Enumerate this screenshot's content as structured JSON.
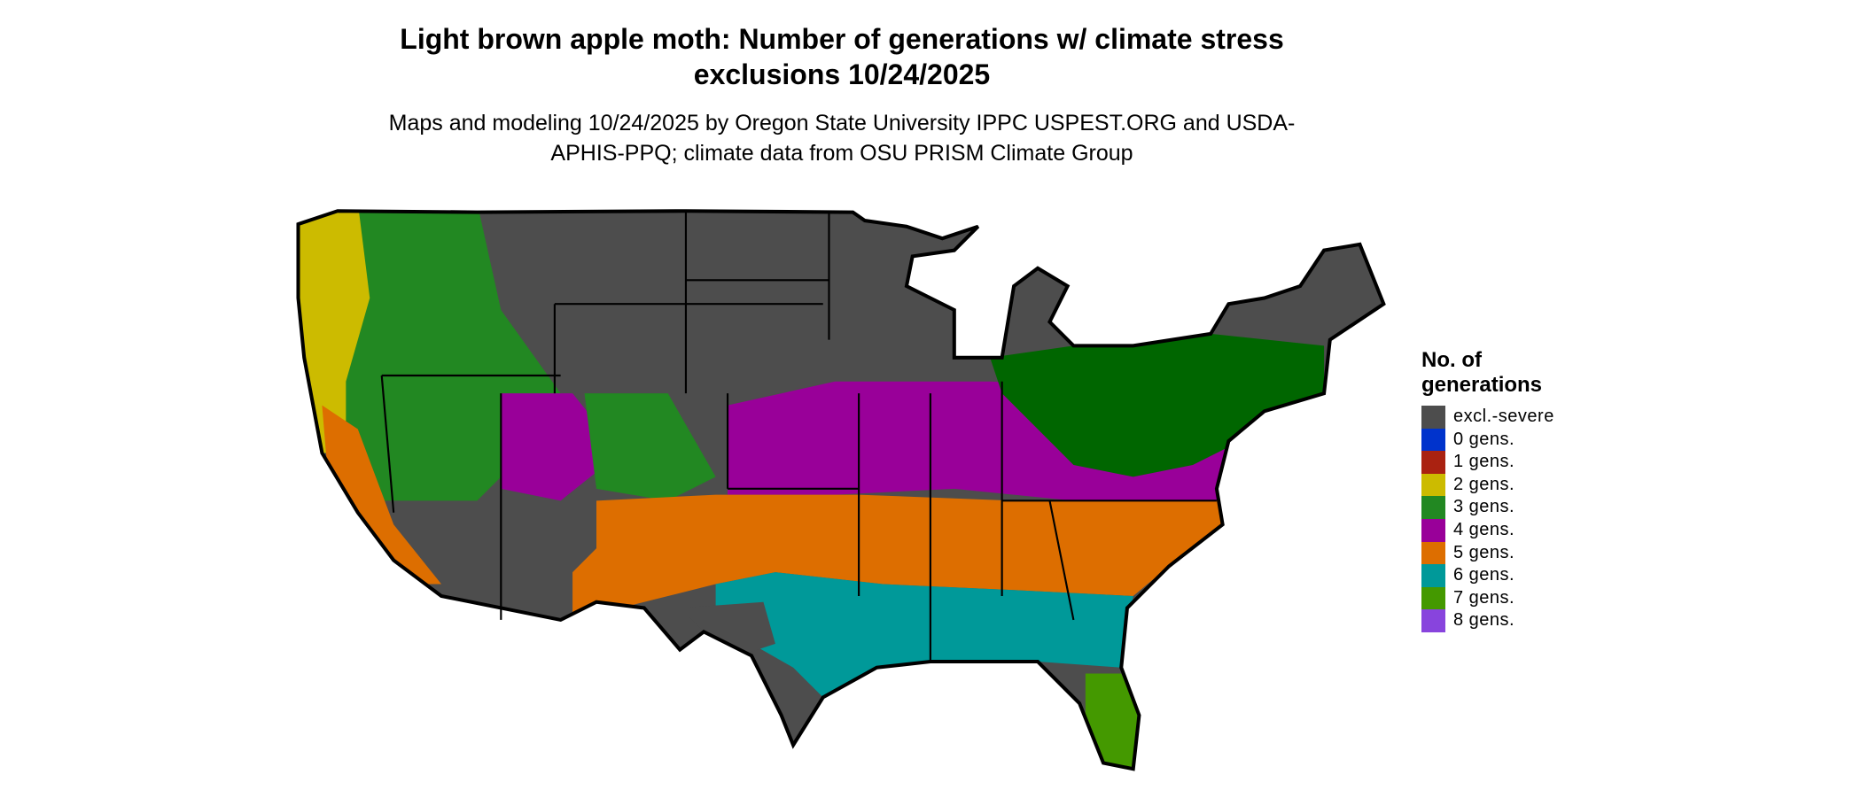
{
  "header": {
    "title": "Light brown apple moth: Number of generations w/ climate stress exclusions 10/24/2025",
    "subtitle": "Maps and modeling 10/24/2025 by Oregon State University IPPC USPEST.ORG and USDA-APHIS-PPQ; climate data from OSU PRISM Climate Group"
  },
  "legend": {
    "title": "No. of generations",
    "items": [
      {
        "label": "excl.-severe",
        "color": "#4d4d4d"
      },
      {
        "label": "0 gens.",
        "color": "#0033cc"
      },
      {
        "label": "1 gens.",
        "color": "#aa2211"
      },
      {
        "label": "2 gens.",
        "color": "#ccbb00"
      },
      {
        "label": "3 gens.",
        "color": "#228822"
      },
      {
        "label": "4 gens.",
        "color": "#990099"
      },
      {
        "label": "5 gens.",
        "color": "#dd6e00"
      },
      {
        "label": "6 gens.",
        "color": "#009999"
      },
      {
        "label": "7 gens.",
        "color": "#449900"
      },
      {
        "label": "8 gens.",
        "color": "#8844dd"
      }
    ]
  }
}
